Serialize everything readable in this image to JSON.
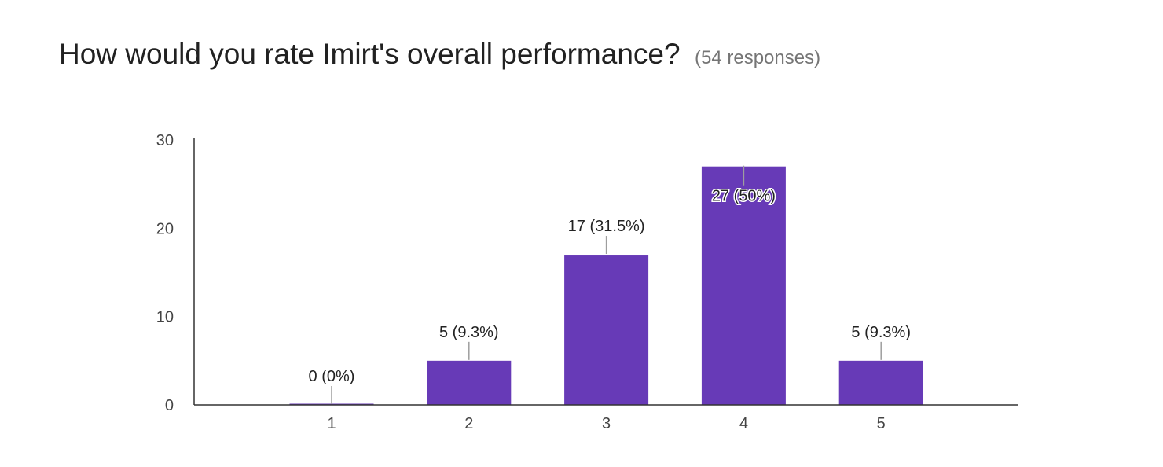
{
  "header": {
    "question": "How would you rate Imirt's overall performance?",
    "responses": "(54 responses)"
  },
  "colors": {
    "bar": "#673ab7",
    "axis": "#333333",
    "leader": "#9e9e9e"
  },
  "chart_data": {
    "type": "bar",
    "categories": [
      "1",
      "2",
      "3",
      "4",
      "5"
    ],
    "values": [
      0,
      5,
      17,
      27,
      5
    ],
    "data_labels": [
      "0 (0%)",
      "5 (9.3%)",
      "17 (31.5%)",
      "27 (50%)",
      "5 (9.3%)"
    ],
    "yticks": [
      0,
      10,
      20,
      30
    ],
    "ylim": [
      0,
      30
    ],
    "grid": false,
    "legend": "none"
  }
}
